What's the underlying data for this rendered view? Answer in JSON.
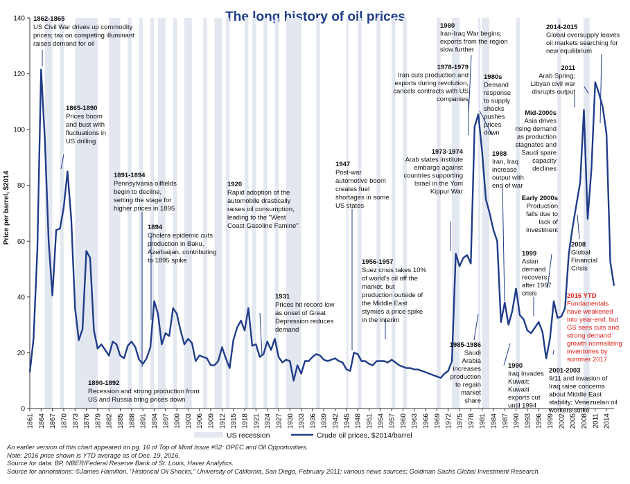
{
  "colors": {
    "line": "#1f3c88",
    "recession": "#e3e7f0",
    "title": "#1f3c88",
    "annotation_red": "#e0201b",
    "pointer": "#1f3c88"
  },
  "chart_data": {
    "type": "line",
    "title": "The long history of oil prices",
    "ylabel": "Price per barrel, $2014",
    "xlabel": "",
    "ylim": [
      0,
      140
    ],
    "xlim": [
      1861,
      2016
    ],
    "y_ticks": [
      0,
      20,
      40,
      60,
      80,
      100,
      120,
      140
    ],
    "x_ticks": [
      1861,
      1864,
      1867,
      1870,
      1873,
      1876,
      1879,
      1882,
      1885,
      1888,
      1891,
      1894,
      1897,
      1900,
      1903,
      1906,
      1909,
      1912,
      1915,
      1918,
      1921,
      1924,
      1927,
      1930,
      1933,
      1936,
      1939,
      1942,
      1945,
      1948,
      1951,
      1954,
      1957,
      1960,
      1963,
      1966,
      1969,
      1972,
      1975,
      1978,
      1981,
      1984,
      1987,
      1990,
      1993,
      1996,
      1999,
      2002,
      2005,
      2008,
      2011,
      2014
    ],
    "grid": false,
    "legend_position": "bottom",
    "legend": [
      "US recession",
      "Crude oil prices, $2014/barrel"
    ],
    "series": [
      {
        "name": "Crude oil prices, $2014/barrel",
        "x": [
          1861,
          1862,
          1863,
          1864,
          1865,
          1866,
          1867,
          1868,
          1869,
          1870,
          1871,
          1872,
          1873,
          1874,
          1875,
          1876,
          1877,
          1878,
          1879,
          1880,
          1881,
          1882,
          1883,
          1884,
          1885,
          1886,
          1887,
          1888,
          1889,
          1890,
          1891,
          1892,
          1893,
          1894,
          1895,
          1896,
          1897,
          1898,
          1899,
          1900,
          1901,
          1902,
          1903,
          1904,
          1905,
          1906,
          1907,
          1908,
          1909,
          1910,
          1911,
          1912,
          1913,
          1914,
          1915,
          1916,
          1917,
          1918,
          1919,
          1920,
          1921,
          1922,
          1923,
          1924,
          1925,
          1926,
          1927,
          1928,
          1929,
          1930,
          1931,
          1932,
          1933,
          1934,
          1935,
          1936,
          1937,
          1938,
          1939,
          1940,
          1941,
          1942,
          1943,
          1944,
          1945,
          1946,
          1947,
          1948,
          1949,
          1950,
          1951,
          1952,
          1953,
          1954,
          1955,
          1956,
          1957,
          1958,
          1959,
          1960,
          1961,
          1962,
          1963,
          1964,
          1965,
          1966,
          1967,
          1968,
          1969,
          1970,
          1971,
          1972,
          1973,
          1974,
          1975,
          1976,
          1977,
          1978,
          1979,
          1980,
          1981,
          1982,
          1983,
          1984,
          1985,
          1986,
          1987,
          1988,
          1989,
          1990,
          1991,
          1992,
          1993,
          1994,
          1995,
          1996,
          1997,
          1998,
          1999,
          2000,
          2001,
          2002,
          2003,
          2004,
          2005,
          2006,
          2007,
          2008,
          2009,
          2010,
          2011,
          2012,
          2013,
          2014,
          2015,
          2016
        ],
        "values": [
          13,
          25,
          57,
          121.5,
          96,
          60,
          40.5,
          64,
          64.5,
          72,
          85,
          68,
          36,
          24.5,
          28.5,
          56.5,
          54,
          28,
          21.5,
          23,
          21,
          19,
          24,
          23,
          19,
          18,
          22.5,
          24,
          22,
          17.5,
          16,
          18,
          22,
          38.5,
          34,
          23,
          27,
          26,
          36,
          34,
          28,
          23,
          25,
          23.5,
          17,
          19,
          18.5,
          18,
          15.5,
          15.5,
          17,
          22,
          18,
          14.5,
          24.5,
          29,
          31.5,
          28,
          36,
          22.5,
          23,
          18.5,
          19.5,
          24,
          21,
          25,
          18.5,
          16.5,
          17.5,
          17,
          10,
          15.5,
          12.5,
          17,
          17,
          18.5,
          19.5,
          19,
          17.5,
          17,
          17.5,
          18,
          17,
          16.5,
          14,
          13.5,
          20,
          19.5,
          17,
          17,
          16,
          15.5,
          17,
          17,
          17,
          16.5,
          17.5,
          16.5,
          15.5,
          15,
          14.5,
          14.5,
          14,
          14,
          13.5,
          13,
          12.5,
          12,
          11.5,
          11,
          12.5,
          13.5,
          17,
          55.5,
          51,
          54,
          55,
          52,
          101,
          105.5,
          92,
          75,
          70,
          64,
          60,
          31,
          38,
          30,
          35,
          43,
          33.5,
          32,
          28,
          27,
          29,
          31,
          27.5,
          18,
          25,
          38.5,
          32.5,
          33,
          36,
          55.5,
          65,
          73,
          81,
          107,
          68,
          86,
          117,
          113,
          108,
          98.5,
          52.5,
          44
        ]
      }
    ],
    "recessions": [
      [
        1865,
        1867
      ],
      [
        1869,
        1870
      ],
      [
        1873,
        1879
      ],
      [
        1882,
        1885
      ],
      [
        1887,
        1888
      ],
      [
        1890,
        1891
      ],
      [
        1893,
        1894
      ],
      [
        1895,
        1897
      ],
      [
        1899,
        1900
      ],
      [
        1902,
        1904
      ],
      [
        1907,
        1908
      ],
      [
        1910,
        1912
      ],
      [
        1913,
        1914
      ],
      [
        1918,
        1919
      ],
      [
        1920,
        1921
      ],
      [
        1923,
        1924
      ],
      [
        1926,
        1927
      ],
      [
        1929,
        1933
      ],
      [
        1937,
        1938
      ],
      [
        1945,
        1945.5
      ],
      [
        1948,
        1949
      ],
      [
        1953,
        1954
      ],
      [
        1957,
        1958
      ],
      [
        1960,
        1961
      ],
      [
        1969,
        1970
      ],
      [
        1973,
        1975
      ],
      [
        1980,
        1980.5
      ],
      [
        1981,
        1982.9
      ],
      [
        1990,
        1991
      ],
      [
        2001,
        2001.9
      ],
      [
        2007.9,
        2009.5
      ]
    ],
    "annotations": [
      {
        "title": "1862-1865",
        "lines": [
          "US Civil War drives up commodity",
          "prices; tax on competing illuminant",
          "raises demand for oil"
        ]
      },
      {
        "title": "1865-1890",
        "lines": [
          "Prices boom",
          "and bust with",
          "fluctuations in",
          "US drilling"
        ]
      },
      {
        "title": "1891-1894",
        "lines": [
          "Pennsylvania oilfields",
          "begin to decline,",
          "setting the stage for",
          "higher prices in 1895"
        ]
      },
      {
        "title": "1894",
        "lines": [
          "Cholera epidemic cuts",
          "production in Baku,",
          "Azerbaijan, contributing",
          "to 1895 spike"
        ]
      },
      {
        "title": "1890-1892",
        "lines": [
          "Recession and strong production from",
          "US and Russia bring prices down"
        ]
      },
      {
        "title": "1920",
        "lines": [
          "Rapid adoption of the",
          "automobile drastically",
          "raises oil consumption,",
          "leading to the \"West",
          "Coast Gasoline Famine\""
        ]
      },
      {
        "title": "1931",
        "lines": [
          "Prices hit record low",
          "as onset of Great",
          "Depression reduces",
          "demand"
        ]
      },
      {
        "title": "1947",
        "lines": [
          "Post-war",
          "automotive boom",
          "creates fuel",
          "shortages in some",
          "US states"
        ]
      },
      {
        "title": "1956-1957",
        "lines": [
          "Suez crisis takes 10%",
          "of world's oil off the",
          "market, but",
          "production outside of",
          "the Middle East",
          "stymies a price spike",
          "in the interim"
        ]
      },
      {
        "title": "1973-1974",
        "lines": [
          "Arab states institute",
          "embargo against",
          "countries supporting",
          "Israel in the Yom",
          "Kippur War"
        ]
      },
      {
        "title": "1978-1979",
        "lines": [
          "Iran cuts production and",
          "exports during revolution,",
          "cancels contracts with US",
          "companies"
        ]
      },
      {
        "title": "1980",
        "lines": [
          "Iran-Iraq War begins;",
          "exports from the region",
          "slow further"
        ]
      },
      {
        "title": "1980s",
        "lines": [
          "Demand",
          "response",
          "to supply",
          "shocks",
          "pushes",
          "prices",
          "down"
        ]
      },
      {
        "title": "1988",
        "lines": [
          "Iran, Iraq",
          "increase",
          "output with",
          "end of war"
        ]
      },
      {
        "title": "1985-1986",
        "lines": [
          "Saudi",
          "Arabia",
          "increases",
          "production",
          "to regain",
          "market",
          "share"
        ]
      },
      {
        "title": "1990",
        "lines": [
          "Iraq invades",
          "Kuwait;",
          "Kuwaiti",
          "exports cut",
          "until 1994"
        ]
      },
      {
        "title": "1999",
        "lines": [
          "Asian",
          "demand",
          "recovers",
          "after 1997",
          "crisis"
        ]
      },
      {
        "title": "Early 2000s",
        "lines": [
          "Production",
          "falls due to",
          "lack of",
          "investment"
        ]
      },
      {
        "title": "Mid-2000s",
        "lines": [
          "Asia drives",
          "rising demand",
          "as production",
          "stagnates and",
          "Saudi spare",
          "capacity",
          "declines"
        ]
      },
      {
        "title": "2011",
        "lines": [
          "Arab Spring;",
          "Libyan civil war",
          "disrupts output"
        ]
      },
      {
        "title": "2014-2015",
        "lines": [
          "Global oversupply leaves",
          "oil markets searching for",
          "new equilibrium"
        ]
      },
      {
        "title": "2008",
        "lines": [
          "Global",
          "Financial",
          "Crisis"
        ]
      },
      {
        "title": "2016 YTD",
        "lines": [
          "Fundamentals",
          "have weakened",
          "into year-end, but",
          "GS sees cuts and",
          "strong demand",
          "growth normalizing",
          "inventories by",
          "summer 2017"
        ]
      },
      {
        "title": "2001-2003",
        "lines": [
          "9/11 and invasion of",
          "Iraq raise concerns",
          "about Middle East",
          "stability; Venezuelan oil",
          "workers strike"
        ]
      }
    ]
  },
  "notes": [
    "An earlier version of this chart appeared on pg. 16 of Top of Mind Issue #52: OPEC and Oil Opportunities.",
    "Note: 2016 price shown is YTD average as of Dec. 19, 2016.",
    "Source for data: BP, NBER/Federal Reserve Bank of St. Louis, Haver Analytics.",
    "Source for annotations: ©James Hamilton, \"Historical Oil Shocks,\" University of California, San Diego, February 2011; various news sources; Goldman Sachs Global Investment Research."
  ]
}
